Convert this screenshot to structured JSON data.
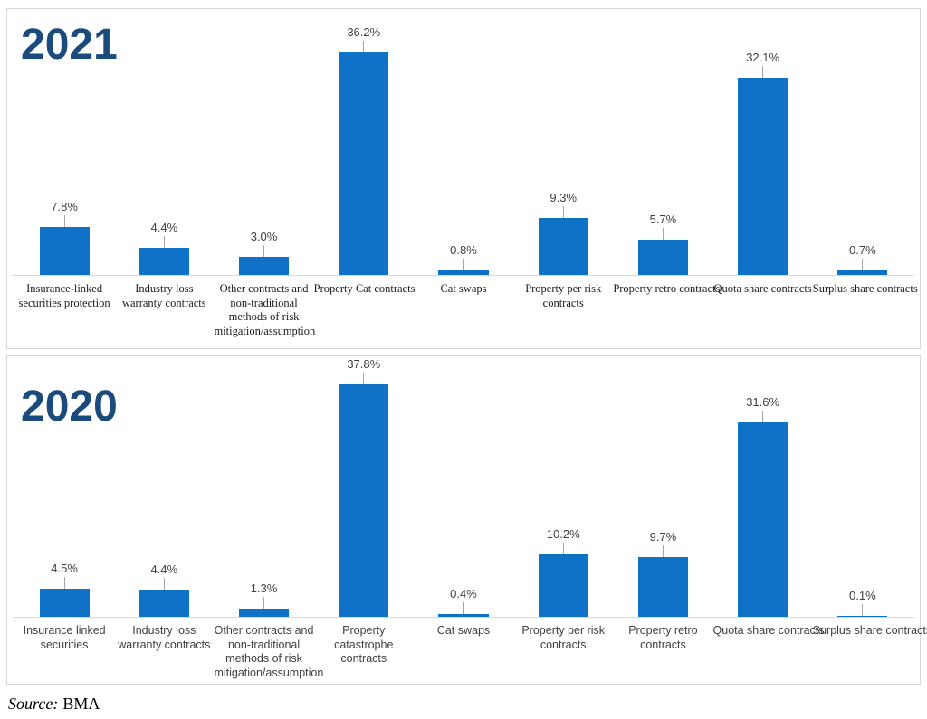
{
  "page": {
    "source_prefix": "Source:",
    "source_text": "BMA"
  },
  "colors": {
    "bar": "#0f72c6",
    "title": "#1b4a7c",
    "data_label": "#404040",
    "axis_line": "#d9d9d9",
    "leader_line": "#a6a6a6",
    "panel_border": "#d6d6d6"
  },
  "chart_data": [
    {
      "type": "bar",
      "title": "2021",
      "categories": [
        "Insurance-linked securities protection",
        "Industry loss warranty contracts",
        "Other contracts and non-traditional methods of risk mitigation/assumption",
        "Property Cat contracts",
        "Cat swaps",
        "Property per risk contracts",
        "Property retro contracts",
        "Quota share contracts",
        "Surplus share contracts"
      ],
      "values": [
        7.8,
        4.4,
        3.0,
        36.2,
        0.8,
        9.3,
        5.7,
        32.1,
        0.7
      ],
      "value_labels": [
        "7.8%",
        "4.4%",
        "3.0%",
        "36.2%",
        "0.8%",
        "9.3%",
        "5.7%",
        "32.1%",
        "0.7%"
      ],
      "xlabel": "",
      "ylabel": "",
      "ylim": [
        0,
        40
      ],
      "grid": false,
      "legend": "none",
      "data_labels": true,
      "axis_ticks_visible": false
    },
    {
      "type": "bar",
      "title": "2020",
      "categories": [
        "Insurance linked securities",
        "Industry loss warranty contracts",
        "Other contracts and non-traditional methods of risk mitigation/assumption",
        "Property catastrophe contracts",
        "Cat swaps",
        "Property per risk contracts",
        "Property retro contracts",
        "Quota share contracts",
        "Surplus share contracts"
      ],
      "values": [
        4.5,
        4.4,
        1.3,
        37.8,
        0.4,
        10.2,
        9.7,
        31.6,
        0.1
      ],
      "value_labels": [
        "4.5%",
        "4.4%",
        "1.3%",
        "37.8%",
        "0.4%",
        "10.2%",
        "9.7%",
        "31.6%",
        "0.1%"
      ],
      "xlabel": "",
      "ylabel": "",
      "ylim": [
        0,
        40
      ],
      "grid": false,
      "legend": "none",
      "data_labels": true,
      "axis_ticks_visible": false
    }
  ]
}
